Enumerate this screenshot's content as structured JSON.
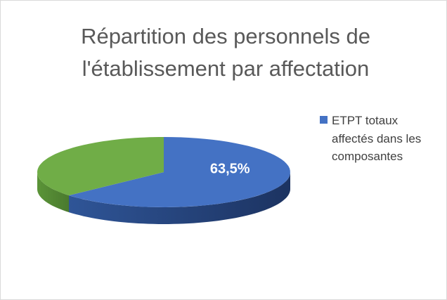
{
  "chart_data": {
    "type": "pie3d",
    "title": "Répartition des personnels de l'établissement par affectation",
    "series": [
      {
        "name": "ETPT totaux affectés dans les composantes",
        "color": "#4472c4",
        "values": [
          63.5,
          36.5
        ],
        "value_labels": [
          "63,5%",
          null
        ]
      }
    ],
    "categories": [
      "ETPT totaux affectés dans les composantes",
      null
    ],
    "colors": [
      "#4472c4",
      "#70ad47"
    ],
    "legend": "right"
  }
}
